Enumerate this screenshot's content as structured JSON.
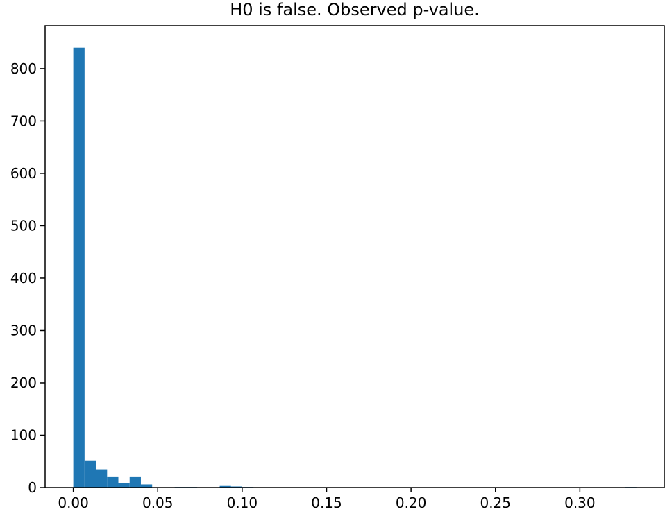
{
  "chart_data": {
    "type": "bar",
    "subtype": "histogram",
    "title": "H0 is false. Observed p-value.",
    "xlabel": "",
    "ylabel": "",
    "xlim": [
      -0.0167,
      0.35
    ],
    "ylim": [
      0,
      882
    ],
    "bar_color": "#1f77b4",
    "grid": false,
    "bins": {
      "start": 0.0,
      "width": 0.00667,
      "counts": [
        840,
        52,
        35,
        20,
        9,
        20,
        6,
        0,
        0,
        1,
        1,
        0,
        0,
        3,
        2,
        1,
        0,
        0,
        0,
        0,
        0,
        0,
        0,
        0,
        0,
        0,
        0,
        0,
        0,
        0,
        0,
        0,
        0,
        0,
        0,
        0,
        0,
        0,
        0,
        0,
        0,
        0,
        0,
        0,
        0,
        0,
        0,
        0,
        0,
        1
      ]
    },
    "xticks": [
      0.0,
      0.05,
      0.1,
      0.15,
      0.2,
      0.25,
      0.3
    ],
    "xtick_labels": [
      "0.00",
      "0.05",
      "0.10",
      "0.15",
      "0.20",
      "0.25",
      "0.30"
    ],
    "yticks": [
      0,
      100,
      200,
      300,
      400,
      500,
      600,
      700,
      800
    ],
    "ytick_labels": [
      "0",
      "100",
      "200",
      "300",
      "400",
      "500",
      "600",
      "700",
      "800"
    ]
  }
}
